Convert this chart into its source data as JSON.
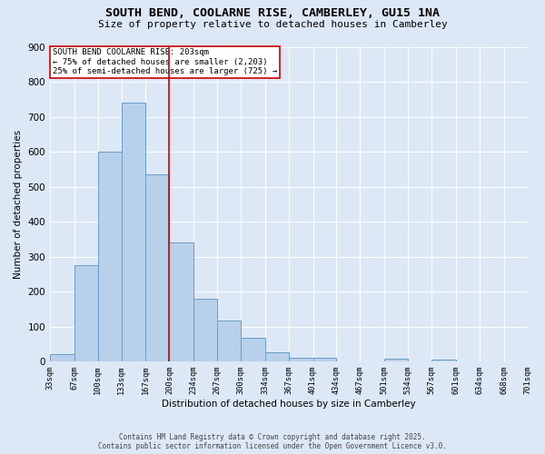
{
  "title1": "SOUTH BEND, COOLARNE RISE, CAMBERLEY, GU15 1NA",
  "title2": "Size of property relative to detached houses in Camberley",
  "xlabel": "Distribution of detached houses by size in Camberley",
  "ylabel": "Number of detached properties",
  "bin_edges": [
    33,
    67,
    100,
    133,
    167,
    200,
    234,
    267,
    300,
    334,
    367,
    401,
    434,
    467,
    501,
    534,
    567,
    601,
    634,
    668,
    701
  ],
  "bar_heights": [
    20,
    275,
    600,
    740,
    535,
    340,
    180,
    118,
    68,
    25,
    10,
    10,
    0,
    0,
    8,
    0,
    5,
    0,
    0,
    0
  ],
  "bar_color": "#b8d0ea",
  "bar_edge_color": "#6a9ec5",
  "red_line_x": 200,
  "red_line_color": "#cc0000",
  "legend_title": "SOUTH BEND COOLARNE RISE: 203sqm",
  "legend_line1": "← 75% of detached houses are smaller (2,203)",
  "legend_line2": "25% of semi-detached houses are larger (725) →",
  "legend_box_color": "#cc0000",
  "footer1": "Contains HM Land Registry data © Crown copyright and database right 2025.",
  "footer2": "Contains public sector information licensed under the Open Government Licence v3.0.",
  "ylim": [
    0,
    900
  ],
  "bg_color": "#dce8f5",
  "fig_bg_color": "#dce8f5"
}
